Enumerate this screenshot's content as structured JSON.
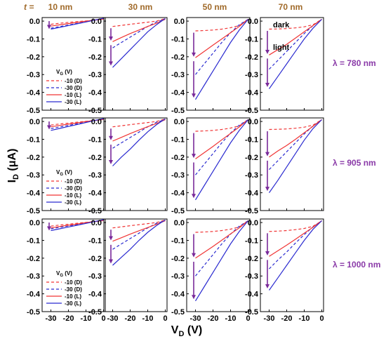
{
  "figure": {
    "t_prefix": "t =",
    "ylabel_main": "I",
    "ylabel_sub": "D",
    "ylabel_unit": " (μA)",
    "xlabel_main": "V",
    "xlabel_sub": "D",
    "xlabel_unit": " (V)",
    "column_headers": [
      "10 nm",
      "30 nm",
      "50 nm",
      "70 nm"
    ],
    "row_labels": [
      "λ = 780 nm",
      "λ = 905 nm",
      "λ = 1000 nm"
    ],
    "legend_title_main": "V",
    "legend_title_sub": "G",
    "legend_title_unit": " (V)",
    "legend_entries": [
      "-10 (D)",
      "-30 (D)",
      "-10 (L)",
      "-30 (L)"
    ],
    "annotation_dark": "dark",
    "annotation_light": "light",
    "colors": {
      "red": "#f03535",
      "blue": "#2a2ad0",
      "brown": "#a06a2a",
      "purple": "#8a3aa8",
      "arrow": "#7a2a9a"
    }
  },
  "chart_data": {
    "type": "line",
    "layout": "3x4 grid of panels",
    "x_axis": {
      "label": "V_D (V)",
      "lim": [
        -35,
        1
      ],
      "ticks": [
        -30,
        -20,
        -10,
        0
      ]
    },
    "y_axis": {
      "label": "I_D (μA)",
      "lim": [
        -0.5,
        0.02
      ],
      "ticks": [
        0.0,
        -0.1,
        -0.2,
        -0.3,
        -0.4,
        -0.5
      ],
      "tick_labels": [
        "0.0",
        "-0.1",
        "-0.2",
        "-0.3",
        "-0.4",
        "-0.5"
      ]
    },
    "x": [
      -30,
      -25,
      -20,
      -15,
      -10,
      -5,
      0
    ],
    "series_styles": [
      {
        "name": "-10 (D)",
        "color": "red",
        "dash": true
      },
      {
        "name": "-30 (D)",
        "color": "blue",
        "dash": true
      },
      {
        "name": "-10 (L)",
        "color": "red",
        "dash": false
      },
      {
        "name": "-30 (L)",
        "color": "blue",
        "dash": false
      }
    ],
    "panels": [
      {
        "row": 0,
        "col": 0,
        "series": [
          [
            -0.018,
            -0.012,
            -0.007,
            -0.003,
            0.001,
            0.006,
            0.011
          ],
          [
            -0.04,
            -0.031,
            -0.022,
            -0.013,
            -0.004,
            0.006,
            0.015
          ],
          [
            -0.028,
            -0.021,
            -0.014,
            -0.007,
            0.0,
            0.006,
            0.012
          ],
          [
            -0.045,
            -0.035,
            -0.025,
            -0.015,
            -0.005,
            0.006,
            0.016
          ]
        ]
      },
      {
        "row": 0,
        "col": 1,
        "series": [
          [
            -0.03,
            -0.024,
            -0.018,
            -0.012,
            -0.006,
            0.0,
            0.015
          ],
          [
            -0.15,
            -0.12,
            -0.09,
            -0.06,
            -0.03,
            -0.004,
            0.01
          ],
          [
            -0.115,
            -0.092,
            -0.07,
            -0.05,
            -0.03,
            -0.012,
            0.01
          ],
          [
            -0.26,
            -0.21,
            -0.16,
            -0.11,
            -0.06,
            -0.02,
            0.015
          ]
        ]
      },
      {
        "row": 0,
        "col": 2,
        "series": [
          [
            -0.055,
            -0.053,
            -0.05,
            -0.045,
            -0.037,
            -0.025,
            0.01
          ],
          [
            -0.3,
            -0.24,
            -0.18,
            -0.12,
            -0.065,
            -0.02,
            0.01
          ],
          [
            -0.205,
            -0.17,
            -0.135,
            -0.1,
            -0.065,
            -0.03,
            0.01
          ],
          [
            -0.44,
            -0.36,
            -0.28,
            -0.2,
            -0.12,
            -0.05,
            0.01
          ]
        ]
      },
      {
        "row": 0,
        "col": 3,
        "series": [
          [
            -0.045,
            -0.044,
            -0.042,
            -0.038,
            -0.032,
            -0.02,
            0.01
          ],
          [
            -0.27,
            -0.22,
            -0.17,
            -0.12,
            -0.07,
            -0.025,
            0.01
          ],
          [
            -0.19,
            -0.16,
            -0.13,
            -0.095,
            -0.06,
            -0.025,
            0.01
          ],
          [
            -0.38,
            -0.31,
            -0.24,
            -0.17,
            -0.1,
            -0.04,
            0.01
          ]
        ]
      },
      {
        "row": 1,
        "col": 0,
        "series": [
          [
            -0.02,
            -0.014,
            -0.009,
            -0.004,
            0.001,
            0.006,
            0.011
          ],
          [
            -0.04,
            -0.031,
            -0.022,
            -0.013,
            -0.004,
            0.006,
            0.015
          ],
          [
            -0.03,
            -0.022,
            -0.015,
            -0.008,
            0.0,
            0.006,
            0.012
          ],
          [
            -0.05,
            -0.039,
            -0.028,
            -0.017,
            -0.006,
            0.006,
            0.016
          ]
        ]
      },
      {
        "row": 1,
        "col": 1,
        "series": [
          [
            -0.03,
            -0.024,
            -0.018,
            -0.012,
            -0.006,
            0.0,
            0.015
          ],
          [
            -0.15,
            -0.12,
            -0.09,
            -0.06,
            -0.03,
            -0.004,
            0.01
          ],
          [
            -0.11,
            -0.089,
            -0.068,
            -0.048,
            -0.029,
            -0.011,
            0.01
          ],
          [
            -0.25,
            -0.2,
            -0.155,
            -0.105,
            -0.058,
            -0.018,
            0.015
          ]
        ]
      },
      {
        "row": 1,
        "col": 2,
        "series": [
          [
            -0.055,
            -0.053,
            -0.05,
            -0.045,
            -0.037,
            -0.025,
            0.01
          ],
          [
            -0.3,
            -0.24,
            -0.18,
            -0.12,
            -0.065,
            -0.02,
            0.01
          ],
          [
            -0.21,
            -0.175,
            -0.14,
            -0.103,
            -0.067,
            -0.031,
            0.01
          ],
          [
            -0.44,
            -0.36,
            -0.28,
            -0.2,
            -0.12,
            -0.05,
            0.01
          ]
        ]
      },
      {
        "row": 1,
        "col": 3,
        "series": [
          [
            -0.045,
            -0.044,
            -0.042,
            -0.038,
            -0.032,
            -0.02,
            0.01
          ],
          [
            -0.27,
            -0.22,
            -0.17,
            -0.12,
            -0.07,
            -0.025,
            0.01
          ],
          [
            -0.2,
            -0.165,
            -0.135,
            -0.1,
            -0.063,
            -0.027,
            0.01
          ],
          [
            -0.4,
            -0.33,
            -0.255,
            -0.18,
            -0.105,
            -0.04,
            0.01
          ]
        ]
      },
      {
        "row": 2,
        "col": 0,
        "series": [
          [
            -0.02,
            -0.014,
            -0.009,
            -0.004,
            0.001,
            0.006,
            0.011
          ],
          [
            -0.035,
            -0.027,
            -0.019,
            -0.011,
            -0.003,
            0.006,
            0.014
          ],
          [
            -0.03,
            -0.022,
            -0.015,
            -0.008,
            0.0,
            0.006,
            0.012
          ],
          [
            -0.045,
            -0.035,
            -0.025,
            -0.015,
            -0.005,
            0.006,
            0.016
          ]
        ]
      },
      {
        "row": 2,
        "col": 1,
        "series": [
          [
            -0.03,
            -0.024,
            -0.018,
            -0.012,
            -0.006,
            0.0,
            0.015
          ],
          [
            -0.15,
            -0.12,
            -0.09,
            -0.06,
            -0.03,
            -0.004,
            0.01
          ],
          [
            -0.105,
            -0.085,
            -0.065,
            -0.046,
            -0.028,
            -0.01,
            0.01
          ],
          [
            -0.24,
            -0.195,
            -0.15,
            -0.1,
            -0.055,
            -0.017,
            0.015
          ]
        ]
      },
      {
        "row": 2,
        "col": 2,
        "series": [
          [
            -0.055,
            -0.053,
            -0.05,
            -0.045,
            -0.037,
            -0.025,
            0.01
          ],
          [
            -0.3,
            -0.24,
            -0.18,
            -0.12,
            -0.065,
            -0.02,
            0.01
          ],
          [
            -0.2,
            -0.167,
            -0.134,
            -0.099,
            -0.064,
            -0.03,
            0.01
          ],
          [
            -0.44,
            -0.36,
            -0.28,
            -0.2,
            -0.12,
            -0.05,
            0.01
          ]
        ]
      },
      {
        "row": 2,
        "col": 3,
        "series": [
          [
            -0.05,
            -0.048,
            -0.045,
            -0.04,
            -0.033,
            -0.021,
            0.01
          ],
          [
            -0.26,
            -0.21,
            -0.165,
            -0.115,
            -0.068,
            -0.024,
            0.01
          ],
          [
            -0.19,
            -0.158,
            -0.127,
            -0.094,
            -0.06,
            -0.026,
            0.01
          ],
          [
            -0.38,
            -0.31,
            -0.24,
            -0.17,
            -0.1,
            -0.038,
            0.01
          ]
        ]
      }
    ]
  }
}
